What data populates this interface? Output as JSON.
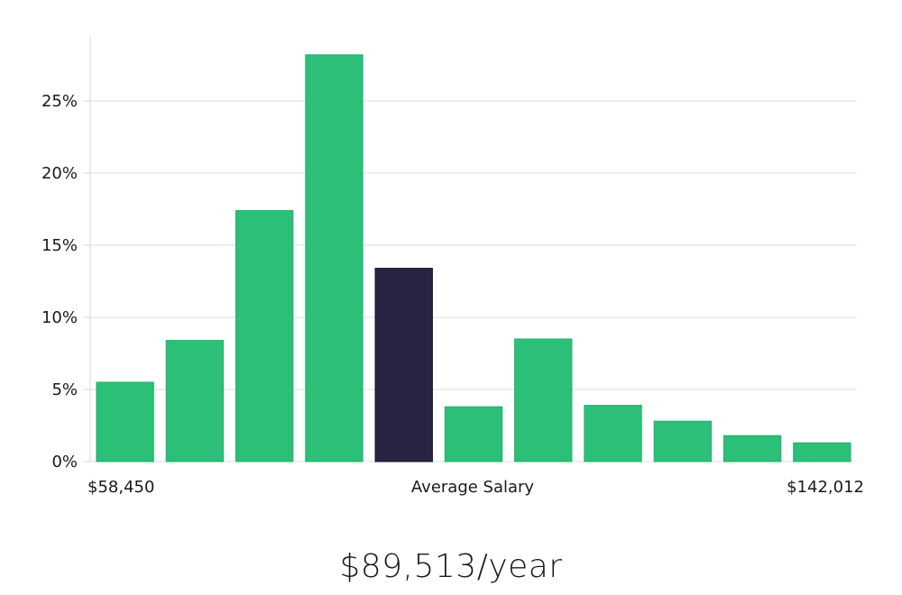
{
  "salary_headline": "$89,513/year",
  "chart_data": {
    "type": "bar",
    "title": "",
    "xlabel": "Average Salary",
    "ylabel": "",
    "x_min_label": "$58,450",
    "x_max_label": "$142,012",
    "ylim": [
      0,
      29.5
    ],
    "yticks": [
      0,
      5,
      10,
      15,
      20,
      25
    ],
    "ytick_labels": [
      "0%",
      "5%",
      "10%",
      "15%",
      "20%",
      "25%"
    ],
    "grid": true,
    "values": [
      5.5,
      8.4,
      17.4,
      28.2,
      13.4,
      3.8,
      8.5,
      3.9,
      2.8,
      1.8,
      1.3
    ],
    "highlight_index": 4,
    "colors": {
      "bar": "#2bbf78",
      "highlight": "#272543",
      "grid": "#dcdcdc",
      "axis": "#d8d8d8"
    }
  }
}
